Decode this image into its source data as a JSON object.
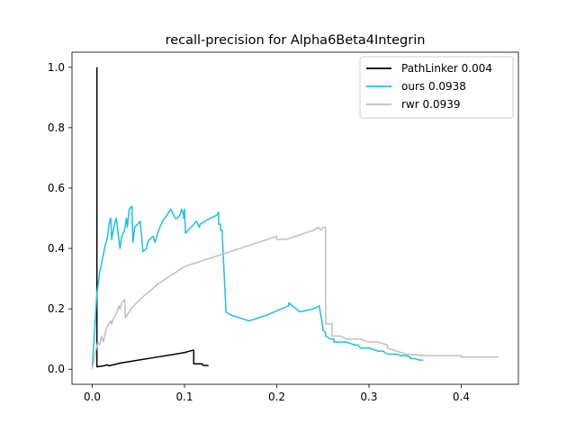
{
  "chart_data": {
    "type": "line",
    "title": "recall-precision for Alpha6Beta4Integrin",
    "xlabel": "",
    "ylabel": "",
    "xlim": [
      -0.022,
      0.462
    ],
    "ylim": [
      -0.05,
      1.05
    ],
    "xticks": [
      0.0,
      0.1,
      0.2,
      0.3,
      0.4
    ],
    "xtick_labels": [
      "0.0",
      "0.1",
      "0.2",
      "0.3",
      "0.4"
    ],
    "yticks": [
      0.0,
      0.2,
      0.4,
      0.6,
      0.8,
      1.0
    ],
    "ytick_labels": [
      "0.0",
      "0.2",
      "0.4",
      "0.6",
      "0.8",
      "1.0"
    ],
    "grid": false,
    "legend_position": "top-right",
    "series": [
      {
        "name": "PathLinker 0.004",
        "color": "#000000",
        "x": [
          0.005,
          0.005,
          0.005,
          0.01,
          0.015,
          0.016,
          0.018,
          0.03,
          0.05,
          0.07,
          0.09,
          0.1,
          0.108,
          0.11,
          0.11,
          0.119,
          0.12,
          0.126
        ],
        "y": [
          1.0,
          0.2,
          0.008,
          0.01,
          0.013,
          0.015,
          0.011,
          0.02,
          0.03,
          0.04,
          0.05,
          0.055,
          0.062,
          0.063,
          0.018,
          0.018,
          0.013,
          0.012
        ]
      },
      {
        "name": "ours 0.0938",
        "color": "#1abfee",
        "x": [
          0.0,
          0.005,
          0.008,
          0.012,
          0.014,
          0.016,
          0.017,
          0.018,
          0.02,
          0.021,
          0.024,
          0.026,
          0.028,
          0.03,
          0.032,
          0.035,
          0.037,
          0.038,
          0.04,
          0.043,
          0.044,
          0.046,
          0.052,
          0.055,
          0.059,
          0.06,
          0.062,
          0.066,
          0.068,
          0.072,
          0.076,
          0.081,
          0.085,
          0.09,
          0.092,
          0.095,
          0.097,
          0.099,
          0.099,
          0.1,
          0.101,
          0.104,
          0.11,
          0.113,
          0.116,
          0.117,
          0.122,
          0.128,
          0.135,
          0.137,
          0.137,
          0.139,
          0.139,
          0.141,
          0.141,
          0.145,
          0.15,
          0.17,
          0.19,
          0.205,
          0.213,
          0.213,
          0.225,
          0.24,
          0.246,
          0.246,
          0.25,
          0.25,
          0.253,
          0.253,
          0.258,
          0.262,
          0.262,
          0.27,
          0.275,
          0.275,
          0.285,
          0.288,
          0.291,
          0.3,
          0.31,
          0.315,
          0.32,
          0.324,
          0.33,
          0.334,
          0.34,
          0.345,
          0.345,
          0.35,
          0.355,
          0.359
        ],
        "y": [
          0.01,
          0.25,
          0.32,
          0.38,
          0.41,
          0.43,
          0.45,
          0.48,
          0.5,
          0.43,
          0.48,
          0.5,
          0.45,
          0.4,
          0.44,
          0.46,
          0.5,
          0.47,
          0.53,
          0.54,
          0.42,
          0.47,
          0.49,
          0.39,
          0.4,
          0.42,
          0.43,
          0.44,
          0.42,
          0.46,
          0.49,
          0.51,
          0.53,
          0.5,
          0.5,
          0.51,
          0.53,
          0.51,
          0.5,
          0.53,
          0.45,
          0.46,
          0.48,
          0.49,
          0.47,
          0.48,
          0.49,
          0.5,
          0.51,
          0.52,
          0.48,
          0.48,
          0.46,
          0.46,
          0.44,
          0.19,
          0.18,
          0.16,
          0.18,
          0.2,
          0.21,
          0.22,
          0.19,
          0.2,
          0.21,
          0.21,
          0.14,
          0.13,
          0.12,
          0.11,
          0.1,
          0.1,
          0.09,
          0.09,
          0.09,
          0.09,
          0.08,
          0.08,
          0.07,
          0.07,
          0.06,
          0.06,
          0.05,
          0.05,
          0.05,
          0.045,
          0.045,
          0.04,
          0.035,
          0.035,
          0.03,
          0.03
        ]
      },
      {
        "name": "rwr 0.0939",
        "color": "#bfbfbf",
        "x": [
          0.0,
          0.003,
          0.006,
          0.008,
          0.01,
          0.012,
          0.014,
          0.015,
          0.016,
          0.018,
          0.02,
          0.021,
          0.022,
          0.025,
          0.027,
          0.028,
          0.029,
          0.03,
          0.032,
          0.035,
          0.036,
          0.038,
          0.042,
          0.048,
          0.055,
          0.063,
          0.07,
          0.08,
          0.09,
          0.1,
          0.11,
          0.12,
          0.13,
          0.14,
          0.15,
          0.16,
          0.17,
          0.18,
          0.19,
          0.2,
          0.2,
          0.21,
          0.22,
          0.23,
          0.24,
          0.245,
          0.248,
          0.25,
          0.253,
          0.253,
          0.26,
          0.26,
          0.27,
          0.275,
          0.28,
          0.29,
          0.3,
          0.31,
          0.32,
          0.32,
          0.33,
          0.34,
          0.36,
          0.38,
          0.4,
          0.4,
          0.42,
          0.44,
          0.44
        ],
        "y": [
          0.0,
          0.05,
          0.09,
          0.08,
          0.11,
          0.09,
          0.12,
          0.13,
          0.14,
          0.15,
          0.16,
          0.15,
          0.16,
          0.18,
          0.19,
          0.2,
          0.21,
          0.2,
          0.22,
          0.23,
          0.17,
          0.18,
          0.2,
          0.22,
          0.24,
          0.26,
          0.28,
          0.3,
          0.32,
          0.34,
          0.35,
          0.36,
          0.37,
          0.38,
          0.39,
          0.4,
          0.41,
          0.42,
          0.43,
          0.44,
          0.43,
          0.43,
          0.44,
          0.45,
          0.46,
          0.47,
          0.46,
          0.47,
          0.47,
          0.15,
          0.15,
          0.11,
          0.11,
          0.1,
          0.1,
          0.1,
          0.09,
          0.09,
          0.08,
          0.07,
          0.06,
          0.05,
          0.045,
          0.045,
          0.045,
          0.04,
          0.04,
          0.04,
          0.04
        ]
      }
    ]
  }
}
